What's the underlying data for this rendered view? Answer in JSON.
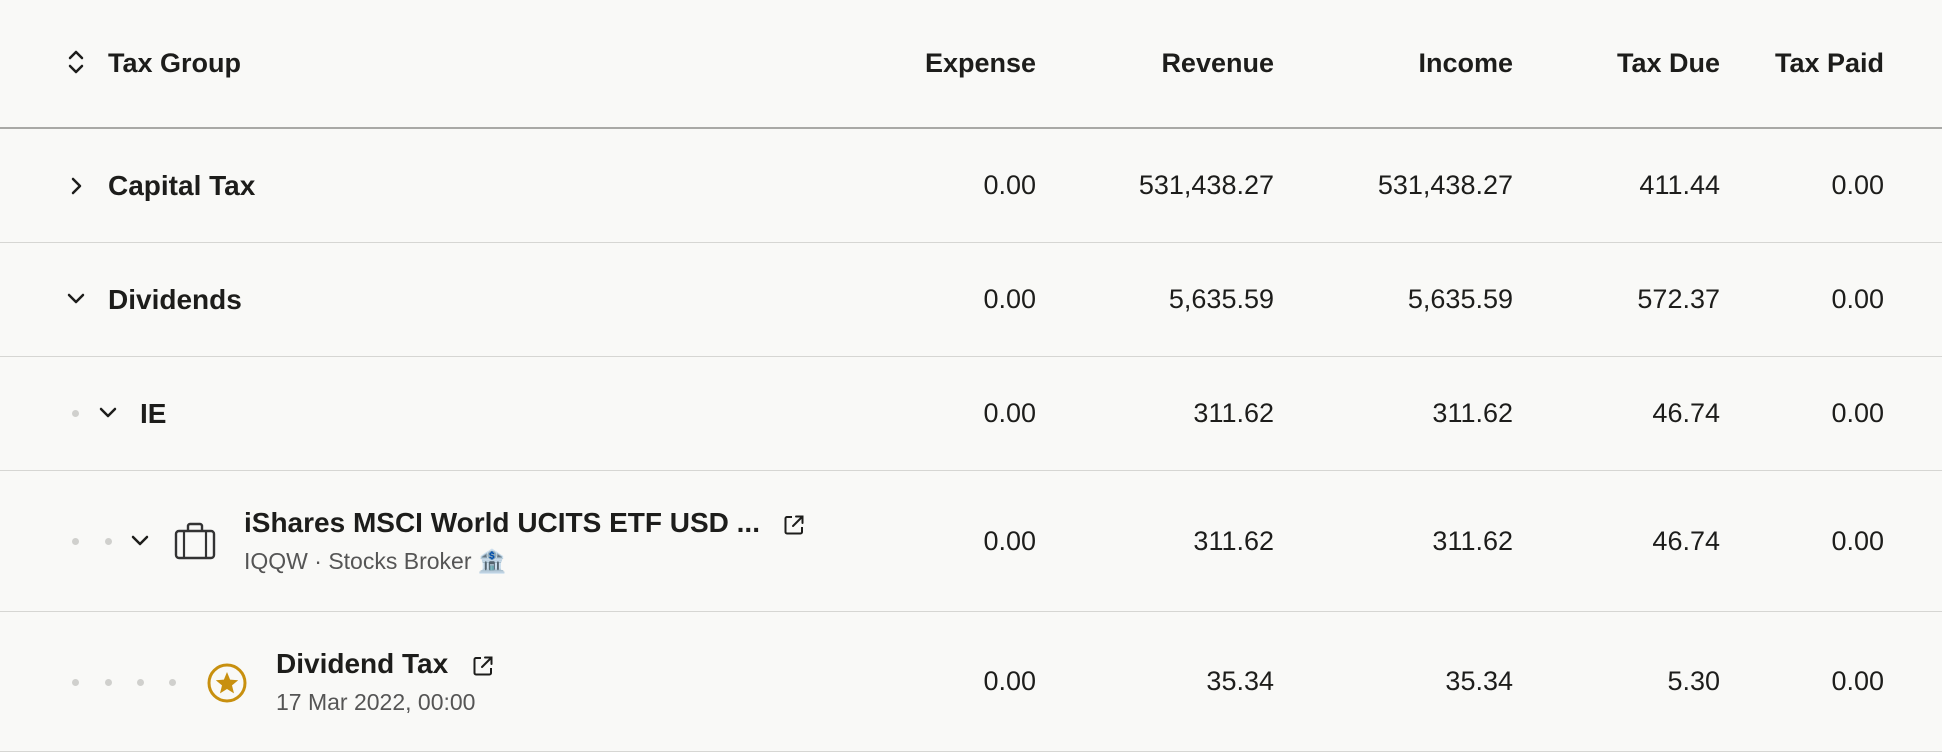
{
  "columns": {
    "tax_group": "Tax Group",
    "expense": "Expense",
    "revenue": "Revenue",
    "income": "Income",
    "tax_due": "Tax Due",
    "tax_paid": "Tax Paid"
  },
  "rows": [
    {
      "name": "Capital Tax",
      "expense": "0.00",
      "revenue": "531,438.27",
      "income": "531,438.27",
      "tax_due": "411.44",
      "tax_paid": "0.00"
    },
    {
      "name": "Dividends",
      "expense": "0.00",
      "revenue": "5,635.59",
      "income": "5,635.59",
      "tax_due": "572.37",
      "tax_paid": "0.00"
    },
    {
      "name": "IE",
      "expense": "0.00",
      "revenue": "311.62",
      "income": "311.62",
      "tax_due": "46.74",
      "tax_paid": "0.00"
    },
    {
      "name": "iShares MSCI World UCITS ETF USD ...",
      "subtitle": "IQQW · Stocks Broker 🏦",
      "expense": "0.00",
      "revenue": "311.62",
      "income": "311.62",
      "tax_due": "46.74",
      "tax_paid": "0.00"
    },
    {
      "name": "Dividend Tax",
      "subtitle": "17 Mar 2022, 00:00",
      "expense": "0.00",
      "revenue": "35.34",
      "income": "35.34",
      "tax_due": "5.30",
      "tax_paid": "0.00"
    }
  ],
  "icons": {
    "sort": "sort-updown-icon",
    "collapsed": "chevron-right-icon",
    "expanded": "chevron-down-icon",
    "asset": "briefcase-icon",
    "event": "star-circle-icon",
    "external": "external-link-icon"
  },
  "colors": {
    "accent_gold": "#c8900f"
  }
}
